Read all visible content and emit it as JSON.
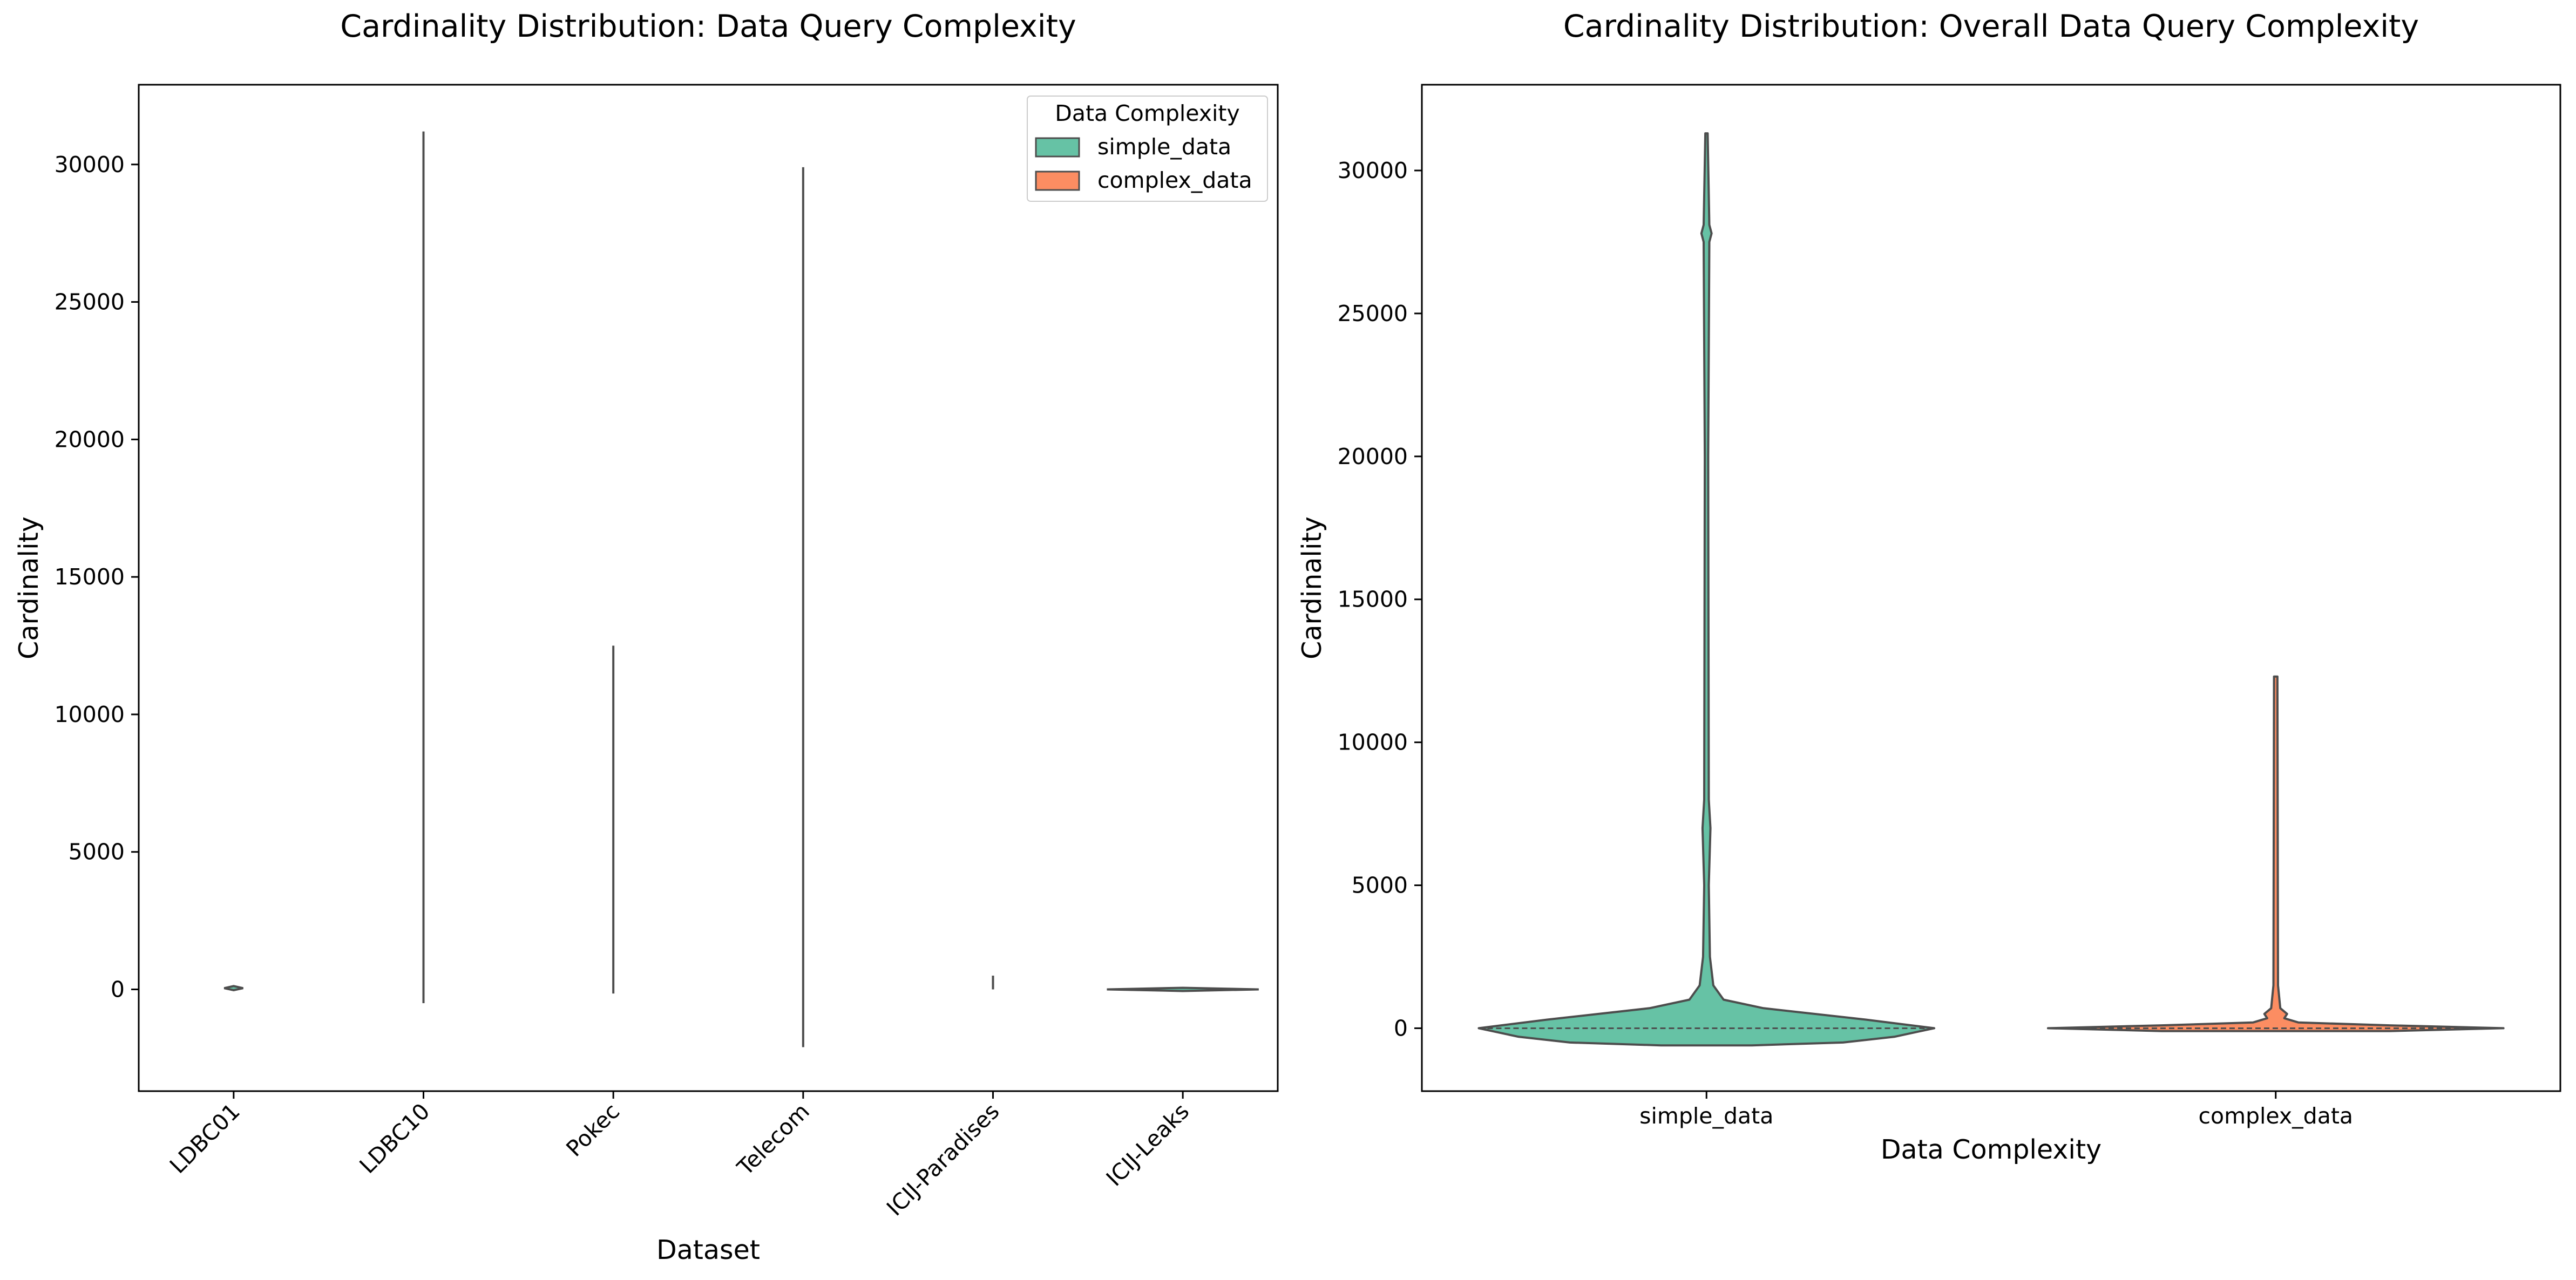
{
  "colors": {
    "simple_data": "#66c2a5",
    "complex_data": "#fc8d62",
    "outline": "#4d4d4d",
    "frame": "#000000"
  },
  "chart_data": [
    {
      "type": "violin",
      "title": "Cardinality Distribution: Data Query Complexity",
      "xlabel": "Dataset",
      "ylabel": "Cardinality",
      "categories": [
        "LDBC01",
        "LDBC10",
        "Pokec",
        "Telecom",
        "ICIJ-Paradises",
        "ICIJ-Leaks"
      ],
      "yticks": [
        0,
        5000,
        10000,
        15000,
        20000,
        25000,
        30000
      ],
      "ylim": [
        -3700,
        32900
      ],
      "legend": {
        "title": "Data Complexity",
        "placement": "top-right",
        "entries": [
          "simple_data",
          "complex_data"
        ]
      },
      "series": [
        {
          "name": "simple_data",
          "violins": [
            {
              "category": "LDBC01",
              "min": -30,
              "max": 120,
              "halfwidth": 0.05
            },
            {
              "category": "LDBC10",
              "min": -500,
              "max": 31200,
              "halfwidth": 0.005
            },
            {
              "category": "Pokec",
              "min": -150,
              "max": 12500,
              "halfwidth": 0.005
            },
            {
              "category": "Telecom",
              "min": -2100,
              "max": 29900,
              "halfwidth": 0.005
            },
            {
              "category": "ICIJ-Paradises",
              "min": 0,
              "max": 500,
              "halfwidth": 0.01
            },
            {
              "category": "ICIJ-Leaks",
              "min": -30,
              "max": 30,
              "halfwidth": 0.4
            }
          ]
        }
      ]
    },
    {
      "type": "violin",
      "title": "Cardinality Distribution: Overall Data Query Complexity",
      "xlabel": "Data Complexity",
      "ylabel": "Cardinality",
      "categories": [
        "simple_data",
        "complex_data"
      ],
      "yticks": [
        0,
        5000,
        10000,
        15000,
        20000,
        25000,
        30000
      ],
      "ylim": [
        -2200,
        33000
      ],
      "series": [
        {
          "name": "simple_data",
          "category": "simple_data",
          "min": -600,
          "max": 31300,
          "profile": [
            [
              -600,
              0.08
            ],
            [
              -500,
              0.24
            ],
            [
              -300,
              0.33
            ],
            [
              0,
              0.4
            ],
            [
              300,
              0.28
            ],
            [
              700,
              0.1
            ],
            [
              1000,
              0.03
            ],
            [
              1500,
              0.012
            ],
            [
              2500,
              0.006
            ],
            [
              5000,
              0.004
            ],
            [
              7000,
              0.007
            ],
            [
              8000,
              0.004
            ],
            [
              20000,
              0.003
            ],
            [
              27500,
              0.005
            ],
            [
              27800,
              0.009
            ],
            [
              28100,
              0.005
            ],
            [
              31300,
              0.002
            ]
          ]
        },
        {
          "name": "complex_data",
          "category": "complex_data",
          "min": -100,
          "max": 12300,
          "profile": [
            [
              -100,
              0.2
            ],
            [
              0,
              0.4
            ],
            [
              100,
              0.2
            ],
            [
              200,
              0.04
            ],
            [
              350,
              0.015
            ],
            [
              500,
              0.02
            ],
            [
              700,
              0.008
            ],
            [
              1500,
              0.004
            ],
            [
              12300,
              0.003
            ]
          ]
        }
      ]
    }
  ]
}
